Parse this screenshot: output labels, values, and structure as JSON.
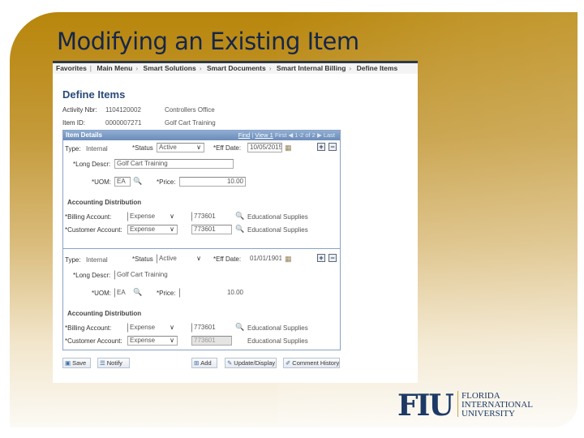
{
  "slide": {
    "title": "Modifying an Existing Item"
  },
  "breadcrumb": [
    "Favorites",
    "Main Menu",
    "Smart Solutions",
    "Smart Documents",
    "Smart Internal Billing",
    "Define Items"
  ],
  "page": {
    "title": "Define Items",
    "activity_label": "Activity Nbr:",
    "activity_value": "1104120002",
    "activity_desc": "Controllers Office",
    "item_label": "Item ID:",
    "item_value": "0000007271",
    "item_desc": "Golf Cart Training"
  },
  "item_details": {
    "header": "Item Details",
    "find": "Find",
    "view": "View 1",
    "first": "First",
    "count": "1-2 of 2",
    "last": "Last"
  },
  "labels": {
    "type": "Type:",
    "status": "*Status",
    "eff_date": "*Eff Date:",
    "long_descr": "*Long Descr:",
    "uom": "*UOM:",
    "price": "*Price:",
    "acct_dist": "Accounting Distribution",
    "billing": "*Billing Account:",
    "customer": "*Customer Account:"
  },
  "records": [
    {
      "type": "Internal",
      "status": "Active",
      "eff_date": "10/05/2015",
      "long_descr": "Golf Cart Training",
      "uom": "EA",
      "price": "10.00",
      "billing_type": "Expense",
      "billing_acct": "773601",
      "billing_desc": "Educational Supplies",
      "customer_type": "Expense",
      "customer_acct": "773601",
      "customer_desc": "Educational Supplies"
    },
    {
      "type": "Internal",
      "status": "Active",
      "eff_date": "01/01/1901",
      "long_descr": "Golf Cart Training",
      "uom": "EA",
      "price": "10.00",
      "billing_type": "Expense",
      "billing_acct": "773601",
      "billing_desc": "Educational Supplies",
      "customer_type": "Expense",
      "customer_acct": "773601",
      "customer_desc": "Educational Supplies"
    }
  ],
  "buttons": {
    "save": "Save",
    "notify": "Notify",
    "add": "Add",
    "update": "Update/Display",
    "comment": "Comment History"
  },
  "logo": {
    "mark": "FIU",
    "line1": "FLORIDA",
    "line2": "INTERNATIONAL",
    "line3": "UNIVERSITY"
  },
  "colors": {
    "gold": "#b8860b",
    "navy": "#15264a",
    "header_blue": "#7d9cc4"
  }
}
